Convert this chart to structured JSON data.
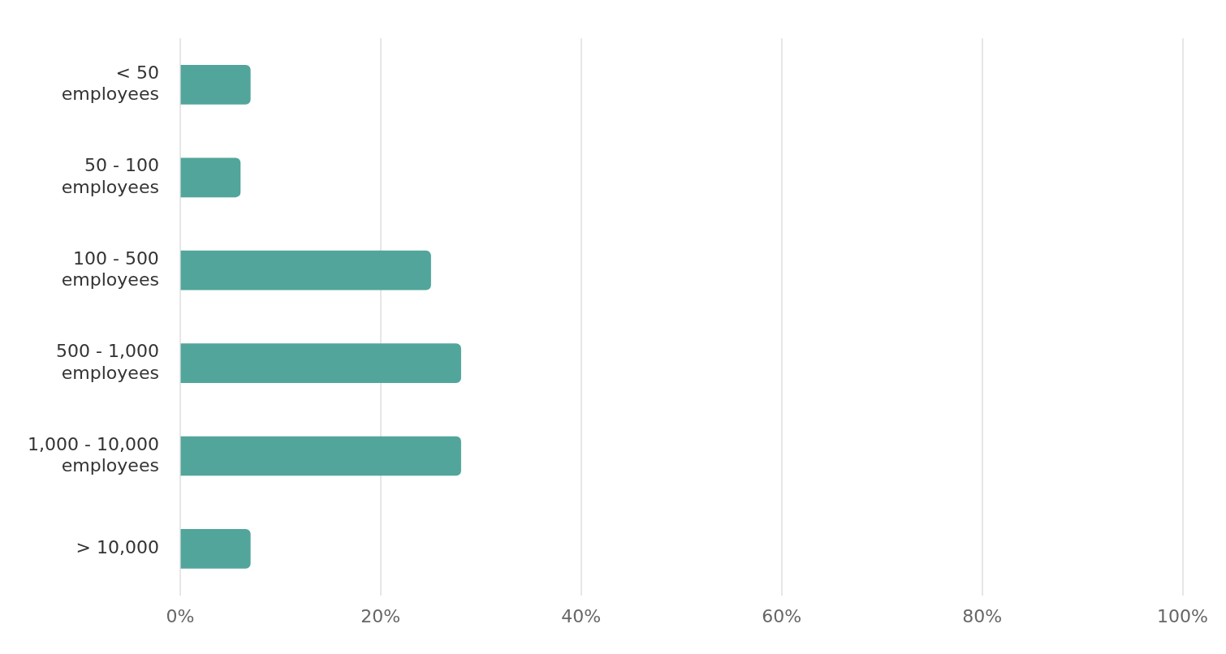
{
  "chart_data": {
    "type": "bar",
    "orientation": "horizontal",
    "categories": [
      "< 50\nemployees",
      "50 - 100\nemployees",
      "100 - 500\nemployees",
      "500 - 1,000\nemployees",
      "1,000 - 10,000\nemployees",
      "> 10,000"
    ],
    "values": [
      7,
      6,
      25,
      28,
      28,
      7
    ],
    "color": "#52a59a",
    "xlim": [
      0,
      100
    ],
    "xticks": [
      {
        "value": 0,
        "label": "0%"
      },
      {
        "value": 20,
        "label": "20%"
      },
      {
        "value": 40,
        "label": "40%"
      },
      {
        "value": 60,
        "label": "60%"
      },
      {
        "value": 80,
        "label": "80%"
      },
      {
        "value": 100,
        "label": "100%"
      }
    ],
    "grid": "x"
  }
}
